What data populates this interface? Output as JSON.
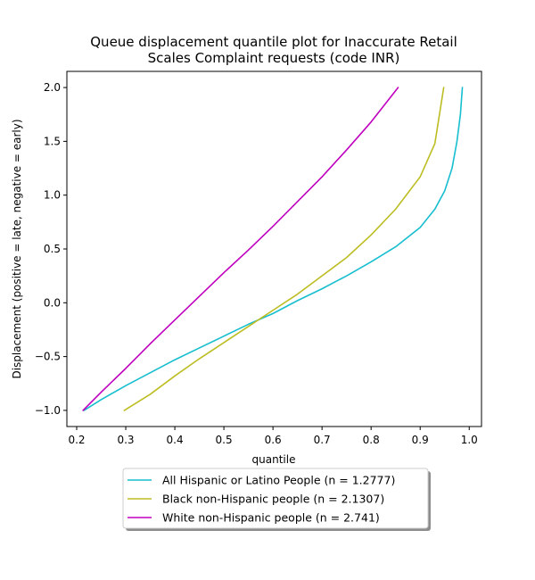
{
  "chart_data": {
    "type": "line",
    "title": "Queue displacement quantile plot for Inaccurate Retail Scales Complaint  requests (code INR)",
    "title_lines": [
      "Queue displacement quantile plot for Inaccurate Retail",
      "Scales Complaint  requests (code INR)"
    ],
    "xlabel": "quantile",
    "ylabel": "Displacement (positive = late, negative = early)",
    "xlim": [
      0.18,
      1.025
    ],
    "ylim": [
      -1.15,
      2.15
    ],
    "xticks": [
      0.2,
      0.3,
      0.4,
      0.5,
      0.6,
      0.7,
      0.8,
      0.9,
      1.0
    ],
    "xtick_labels": [
      "0.2",
      "0.3",
      "0.4",
      "0.5",
      "0.6",
      "0.7",
      "0.8",
      "0.9",
      "1.0"
    ],
    "yticks": [
      -1.0,
      -0.5,
      0.0,
      0.5,
      1.0,
      1.5,
      2.0
    ],
    "ytick_labels": [
      "−1.0",
      "−0.5",
      "0.0",
      "0.5",
      "1.0",
      "1.5",
      "2.0"
    ],
    "grid": false,
    "legend_position": "below-center",
    "series": [
      {
        "name": "All Hispanic or Latino People (n = 1.2777)",
        "color": "#17becf",
        "points": [
          [
            0.215,
            -1.0
          ],
          [
            0.25,
            -0.9
          ],
          [
            0.3,
            -0.77
          ],
          [
            0.35,
            -0.65
          ],
          [
            0.4,
            -0.53
          ],
          [
            0.45,
            -0.42
          ],
          [
            0.5,
            -0.31
          ],
          [
            0.55,
            -0.2
          ],
          [
            0.6,
            -0.1
          ],
          [
            0.65,
            0.02
          ],
          [
            0.7,
            0.13
          ],
          [
            0.75,
            0.25
          ],
          [
            0.8,
            0.38
          ],
          [
            0.85,
            0.52
          ],
          [
            0.9,
            0.7
          ],
          [
            0.93,
            0.87
          ],
          [
            0.95,
            1.04
          ],
          [
            0.965,
            1.25
          ],
          [
            0.975,
            1.5
          ],
          [
            0.982,
            1.75
          ],
          [
            0.986,
            2.0
          ]
        ]
      },
      {
        "name": "Black non-Hispanic people (n = 2.1307)",
        "color": "#bcbd22",
        "points": [
          [
            0.297,
            -1.0
          ],
          [
            0.35,
            -0.85
          ],
          [
            0.4,
            -0.68
          ],
          [
            0.45,
            -0.52
          ],
          [
            0.5,
            -0.37
          ],
          [
            0.55,
            -0.22
          ],
          [
            0.6,
            -0.07
          ],
          [
            0.65,
            0.08
          ],
          [
            0.7,
            0.25
          ],
          [
            0.75,
            0.42
          ],
          [
            0.8,
            0.63
          ],
          [
            0.85,
            0.87
          ],
          [
            0.9,
            1.17
          ],
          [
            0.93,
            1.48
          ],
          [
            0.948,
            2.0
          ]
        ]
      },
      {
        "name": "White non-Hispanic people (n = 2.741)",
        "color": "#bf00bf",
        "points": [
          [
            0.213,
            -1.0
          ],
          [
            0.25,
            -0.83
          ],
          [
            0.3,
            -0.61
          ],
          [
            0.35,
            -0.38
          ],
          [
            0.4,
            -0.16
          ],
          [
            0.45,
            0.06
          ],
          [
            0.5,
            0.28
          ],
          [
            0.55,
            0.49
          ],
          [
            0.6,
            0.71
          ],
          [
            0.65,
            0.94
          ],
          [
            0.7,
            1.17
          ],
          [
            0.75,
            1.42
          ],
          [
            0.8,
            1.68
          ],
          [
            0.855,
            2.0
          ]
        ]
      }
    ]
  }
}
